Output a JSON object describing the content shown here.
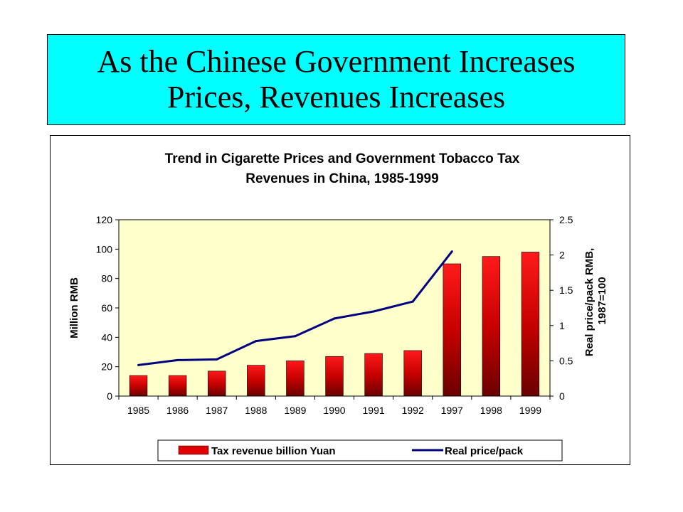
{
  "slide": {
    "title_line1": "As the Chinese Government Increases",
    "title_line2": "Prices, Revenues Increases"
  },
  "chart_data": {
    "type": "bar",
    "title": "Trend in Cigarette Prices and Government Tobacco Tax Revenues in China, 1985-1999",
    "title_line1": "Trend in Cigarette Prices and Government Tobacco Tax",
    "title_line2": "Revenues in China, 1985-1999",
    "categories": [
      "1985",
      "1986",
      "1987",
      "1988",
      "1989",
      "1990",
      "1991",
      "1992",
      "1997",
      "1998",
      "1999"
    ],
    "series": [
      {
        "name": "Tax revenue billion Yuan",
        "type": "bar",
        "axis": "left",
        "color": "#ff0000",
        "values": [
          14,
          14,
          17,
          21,
          24,
          27,
          29,
          31,
          90,
          95,
          98
        ]
      },
      {
        "name": "Real price/pack",
        "type": "line",
        "axis": "right",
        "color": "#000080",
        "values": [
          0.44,
          0.51,
          0.52,
          0.78,
          0.85,
          1.1,
          1.2,
          1.34,
          2.05,
          null,
          null
        ]
      }
    ],
    "ylabel": "Million RMB",
    "ylim": [
      0,
      120
    ],
    "yticks": [
      "0",
      "20",
      "40",
      "60",
      "80",
      "100",
      "120"
    ],
    "y2label_line1": "Real price/pack RMB,",
    "y2label_line2": "1987=100",
    "y2lim": [
      0,
      2.5
    ],
    "y2ticks": [
      "0",
      "0.5",
      "1",
      "1.5",
      "2",
      "2.5"
    ],
    "plot_background": "#ffffcc",
    "grid": false,
    "legend_position": "bottom"
  }
}
